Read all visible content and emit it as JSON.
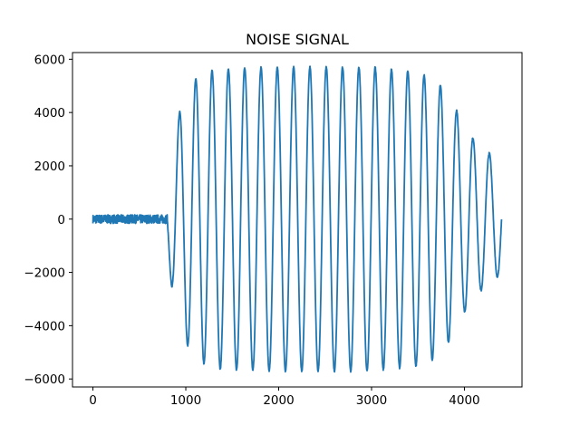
{
  "chart_data": {
    "type": "line",
    "title": "NOISE SIGNAL",
    "xlabel": "",
    "ylabel": "",
    "xlim": [
      -220,
      4620
    ],
    "ylim": [
      -6300,
      6250
    ],
    "x_ticks": [
      0,
      1000,
      2000,
      3000,
      4000
    ],
    "y_ticks": [
      -6000,
      -4000,
      -2000,
      0,
      2000,
      4000,
      6000
    ],
    "grid": false,
    "legend": "none",
    "line_color": "#1f77b4",
    "series": [
      {
        "x_range": [
          0,
          4400
        ],
        "envelope": {
          "x": [
            0,
            790,
            800,
            850,
            950,
            1100,
            1300,
            1500,
            2000,
            2500,
            3000,
            3500,
            3700,
            3800,
            3900,
            4000,
            4100,
            4200,
            4300,
            4400
          ],
          "amplitude": [
            180,
            180,
            1200,
            2600,
            4300,
            5250,
            5600,
            5650,
            5700,
            5700,
            5700,
            5500,
            5200,
            4800,
            4200,
            3500,
            3000,
            2600,
            2400,
            2000
          ]
        },
        "cycles": 20.5,
        "start_x": 800,
        "end_x": 4400,
        "offset": 0,
        "noise": 80
      }
    ]
  }
}
